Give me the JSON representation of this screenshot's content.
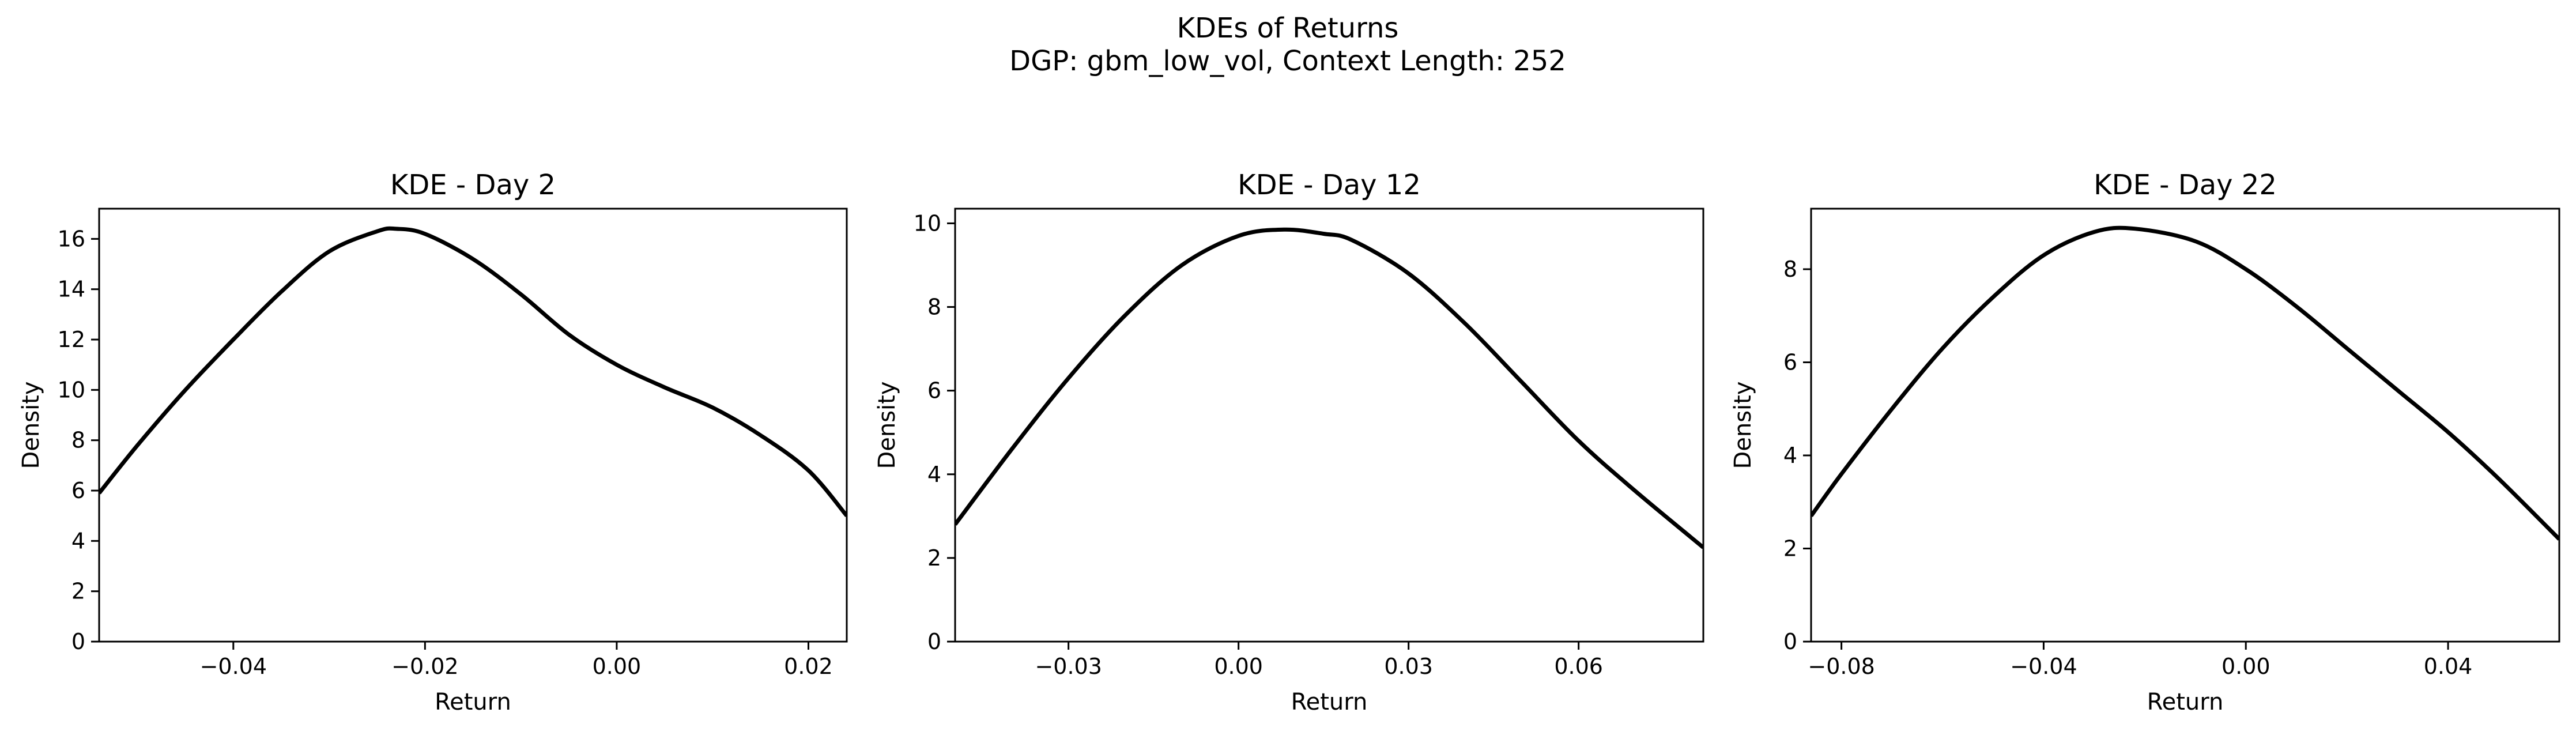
{
  "figure": {
    "title_line1": "KDEs of Returns",
    "title_line2": "DGP: gbm_low_vol, Context Length: 252"
  },
  "chart_data": [
    {
      "type": "line",
      "title": "KDE - Day 2",
      "xlabel": "Return",
      "ylabel": "Density",
      "xlim": [
        -0.054,
        0.024
      ],
      "ylim": [
        0,
        17.2
      ],
      "xticks": [
        -0.04,
        -0.02,
        0.0,
        0.02
      ],
      "xtick_labels": [
        "−0.04",
        "−0.02",
        "0.00",
        "0.02"
      ],
      "yticks": [
        0,
        2,
        4,
        6,
        8,
        10,
        12,
        14,
        16
      ],
      "ytick_labels": [
        "0",
        "2",
        "4",
        "6",
        "8",
        "10",
        "12",
        "14",
        "16"
      ],
      "line_color": "#000000",
      "grid": false,
      "series": [
        {
          "x": [
            -0.054,
            -0.05,
            -0.045,
            -0.04,
            -0.035,
            -0.03,
            -0.025,
            -0.023,
            -0.02,
            -0.015,
            -0.01,
            -0.005,
            0.0,
            0.005,
            0.01,
            0.015,
            0.02,
            0.024
          ],
          "y": [
            5.9,
            7.8,
            10.0,
            12.0,
            13.9,
            15.5,
            16.3,
            16.4,
            16.2,
            15.2,
            13.8,
            12.2,
            11.0,
            10.1,
            9.3,
            8.2,
            6.8,
            5.0
          ]
        }
      ]
    },
    {
      "type": "line",
      "title": "KDE - Day 12",
      "xlabel": "Return",
      "ylabel": "Density",
      "xlim": [
        -0.05,
        0.082
      ],
      "ylim": [
        0,
        10.35
      ],
      "xticks": [
        -0.03,
        0.0,
        0.03,
        0.06
      ],
      "xtick_labels": [
        "−0.03",
        "0.00",
        "0.03",
        "0.06"
      ],
      "yticks": [
        0,
        2,
        4,
        6,
        8,
        10
      ],
      "ytick_labels": [
        "0",
        "2",
        "4",
        "6",
        "8",
        "10"
      ],
      "line_color": "#000000",
      "grid": false,
      "series": [
        {
          "x": [
            -0.05,
            -0.04,
            -0.03,
            -0.02,
            -0.01,
            0.0,
            0.008,
            0.015,
            0.02,
            0.03,
            0.04,
            0.05,
            0.06,
            0.07,
            0.082
          ],
          "y": [
            2.8,
            4.6,
            6.3,
            7.8,
            9.0,
            9.7,
            9.85,
            9.75,
            9.6,
            8.8,
            7.6,
            6.2,
            4.8,
            3.6,
            2.25
          ]
        }
      ]
    },
    {
      "type": "line",
      "title": "KDE - Day 22",
      "xlabel": "Return",
      "ylabel": "Density",
      "xlim": [
        -0.086,
        0.062
      ],
      "ylim": [
        0,
        9.3
      ],
      "xticks": [
        -0.08,
        -0.04,
        0.0,
        0.04
      ],
      "xtick_labels": [
        "−0.08",
        "−0.04",
        "0.00",
        "0.04"
      ],
      "yticks": [
        0,
        2,
        4,
        6,
        8
      ],
      "ytick_labels": [
        "0",
        "2",
        "4",
        "6",
        "8"
      ],
      "line_color": "#000000",
      "grid": false,
      "series": [
        {
          "x": [
            -0.086,
            -0.08,
            -0.07,
            -0.06,
            -0.05,
            -0.04,
            -0.03,
            -0.022,
            -0.01,
            0.0,
            0.01,
            0.02,
            0.03,
            0.04,
            0.05,
            0.062
          ],
          "y": [
            2.7,
            3.6,
            5.0,
            6.3,
            7.4,
            8.3,
            8.8,
            8.87,
            8.6,
            8.0,
            7.2,
            6.3,
            5.4,
            4.5,
            3.5,
            2.2
          ]
        }
      ]
    }
  ]
}
